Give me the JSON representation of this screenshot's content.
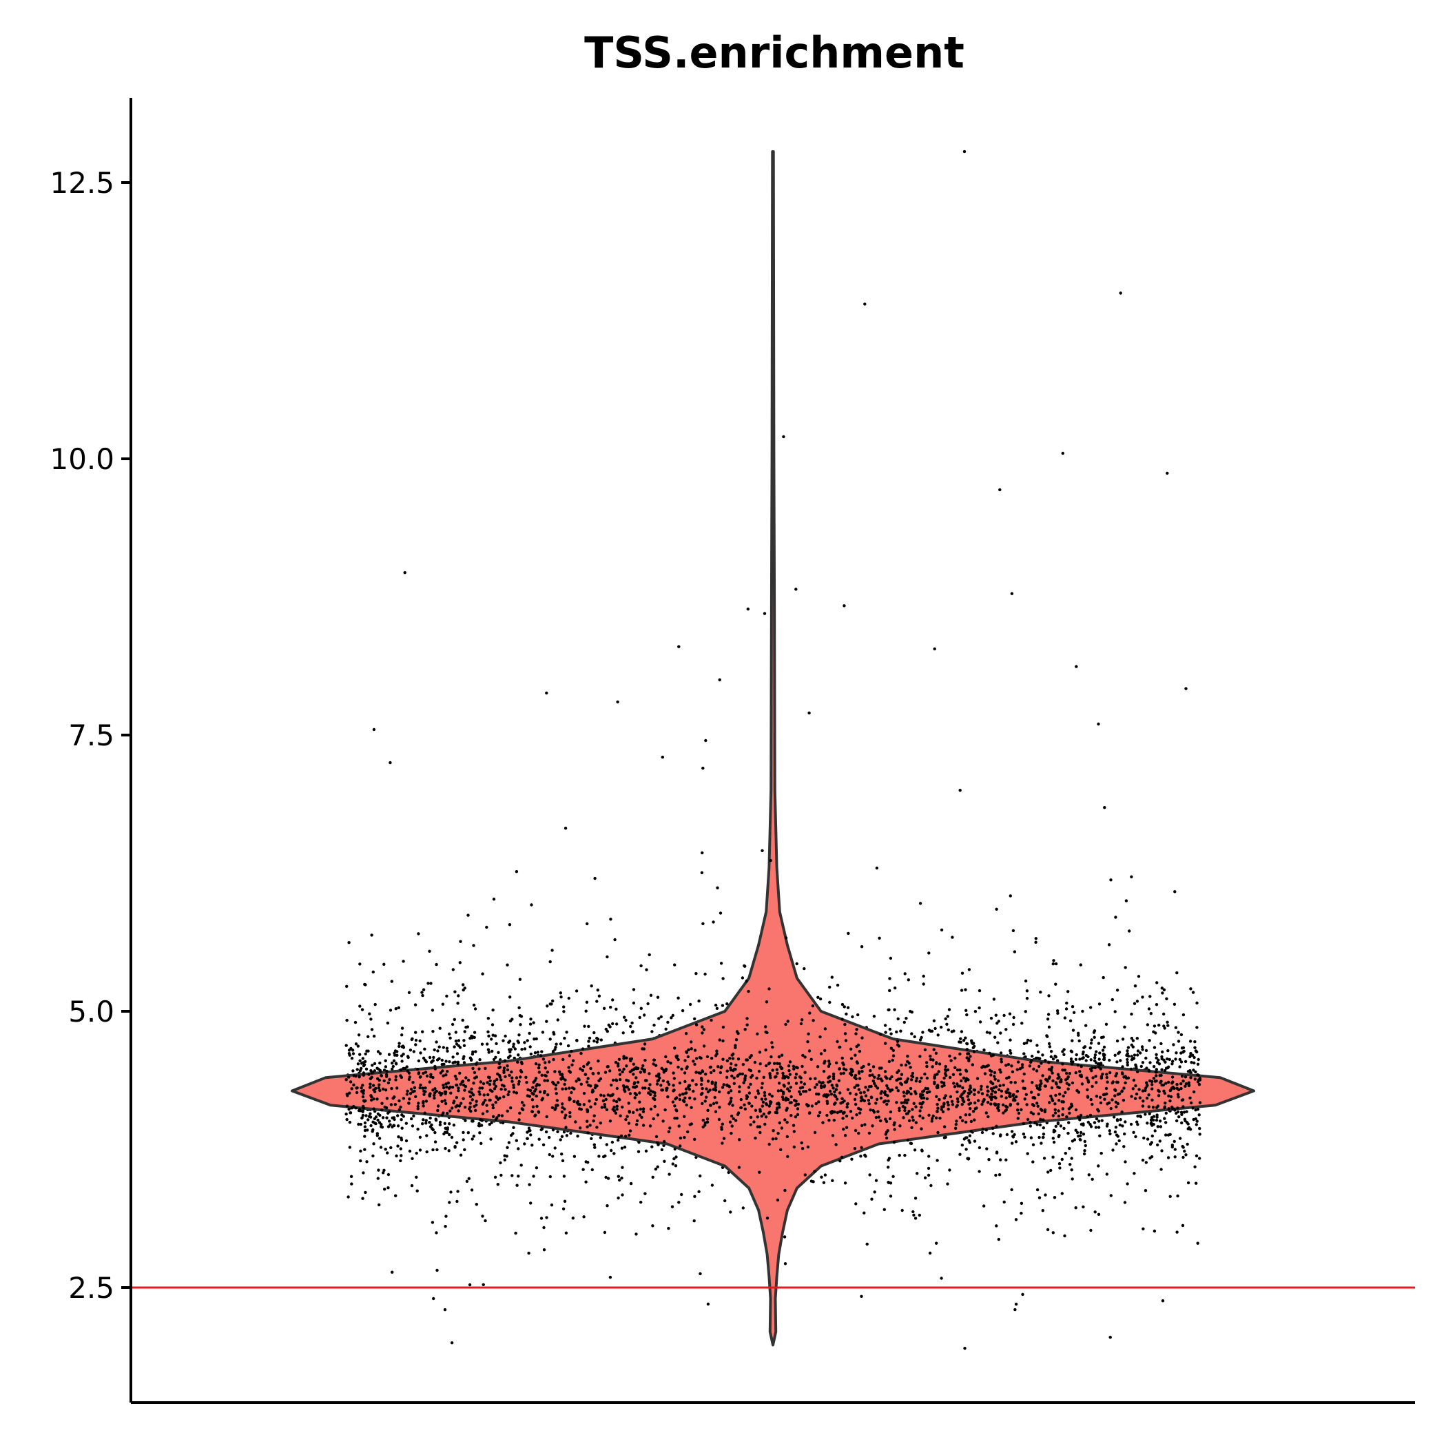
{
  "chart_data": {
    "type": "violin",
    "title": "TSS.enrichment",
    "xlabel": "",
    "ylabel": "",
    "ylim": [
      1.5,
      13.3
    ],
    "yticks": [
      "2.5",
      "5.0",
      "7.5",
      "10.0",
      "12.5"
    ],
    "ytick_values": [
      2.5,
      5.0,
      7.5,
      10.0,
      12.5
    ],
    "grid": false,
    "legend": "none",
    "violin": {
      "fill": "#F8766D",
      "stroke": "#333333",
      "min": 1.98,
      "max": 12.78,
      "density_profile": [
        {
          "y": 1.98,
          "w": 0.0
        },
        {
          "y": 2.1,
          "w": 0.006
        },
        {
          "y": 2.4,
          "w": 0.005
        },
        {
          "y": 2.6,
          "w": 0.008
        },
        {
          "y": 2.8,
          "w": 0.012
        },
        {
          "y": 3.0,
          "w": 0.02
        },
        {
          "y": 3.2,
          "w": 0.03
        },
        {
          "y": 3.4,
          "w": 0.05
        },
        {
          "y": 3.6,
          "w": 0.1
        },
        {
          "y": 3.8,
          "w": 0.22
        },
        {
          "y": 4.0,
          "w": 0.55
        },
        {
          "y": 4.15,
          "w": 0.92
        },
        {
          "y": 4.28,
          "w": 1.0
        },
        {
          "y": 4.4,
          "w": 0.93
        },
        {
          "y": 4.55,
          "w": 0.55
        },
        {
          "y": 4.75,
          "w": 0.25
        },
        {
          "y": 5.0,
          "w": 0.1
        },
        {
          "y": 5.3,
          "w": 0.05
        },
        {
          "y": 5.6,
          "w": 0.03
        },
        {
          "y": 5.9,
          "w": 0.014
        },
        {
          "y": 6.3,
          "w": 0.008
        },
        {
          "y": 7.0,
          "w": 0.004
        },
        {
          "y": 8.7,
          "w": 0.003
        },
        {
          "y": 10.0,
          "w": 0.002
        },
        {
          "y": 12.78,
          "w": 0.001
        }
      ]
    },
    "points": {
      "color": "#000000",
      "count": 5200,
      "median": 4.3,
      "notable": [
        12.78,
        11.5,
        11.4,
        10.2,
        10.05,
        9.87,
        9.72,
        8.97,
        8.82,
        8.78,
        8.67,
        8.64,
        8.6,
        8.3,
        8.28,
        8.12,
        8.0,
        7.92,
        7.88,
        7.8,
        7.7,
        7.6,
        7.55,
        7.45,
        7.3,
        7.25,
        7.2,
        2.42,
        2.4,
        2.38,
        2.35,
        2.05,
        2.0,
        1.95
      ]
    },
    "reference_line": {
      "y": 2.5,
      "color": "#E41A1C"
    }
  }
}
